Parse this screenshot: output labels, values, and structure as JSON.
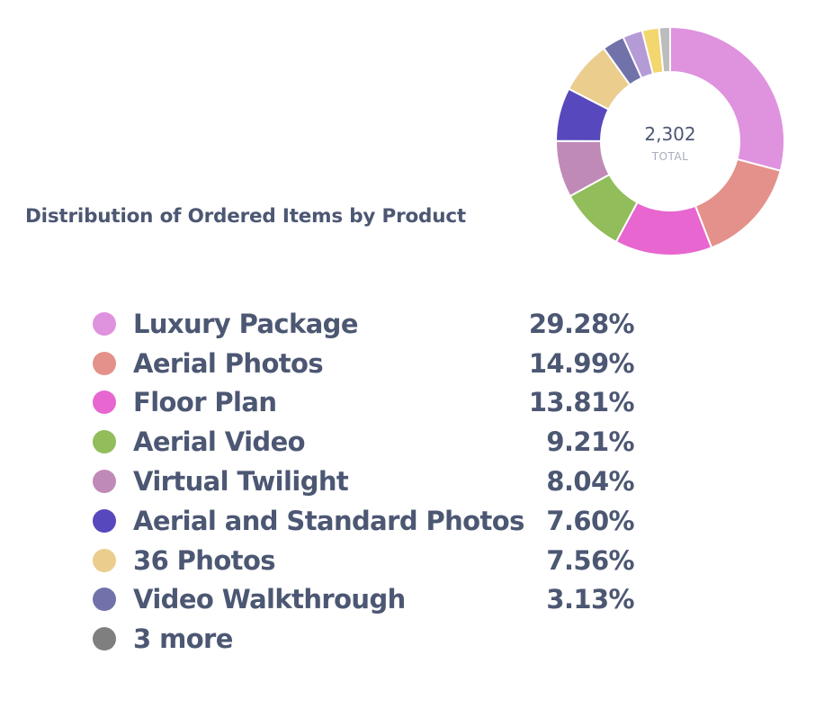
{
  "chart_data": {
    "type": "pie",
    "title": "Distribution of Ordered Items by Product",
    "total_value": "2,302",
    "total_label": "TOTAL",
    "legend_position": "bottom",
    "slices": [
      {
        "label": "Luxury Package",
        "percent_text": "29.28%",
        "value": 29.28,
        "color": "#df92de"
      },
      {
        "label": "Aerial Photos",
        "percent_text": "14.99%",
        "value": 14.99,
        "color": "#e3918a"
      },
      {
        "label": "Floor Plan",
        "percent_text": "13.81%",
        "value": 13.81,
        "color": "#e866d0"
      },
      {
        "label": "Aerial Video",
        "percent_text": "9.21%",
        "value": 9.21,
        "color": "#91bd5a"
      },
      {
        "label": "Virtual Twilight",
        "percent_text": "8.04%",
        "value": 8.04,
        "color": "#c08ab7"
      },
      {
        "label": "Aerial and Standard Photos",
        "percent_text": "7.60%",
        "value": 7.6,
        "color": "#5748bd"
      },
      {
        "label": "36 Photos",
        "percent_text": "7.56%",
        "value": 7.56,
        "color": "#ebcd8e"
      },
      {
        "label": "Video Walkthrough",
        "percent_text": "3.13%",
        "value": 3.13,
        "color": "#7172a9"
      }
    ],
    "more_label": "3 more",
    "more_color": "#7f7f7f",
    "more_slices": [
      {
        "value": 2.8,
        "color": "#b49bd6"
      },
      {
        "value": 2.4,
        "color": "#f3d66d"
      },
      {
        "value": 1.58,
        "color": "#bcbcbc"
      }
    ]
  }
}
